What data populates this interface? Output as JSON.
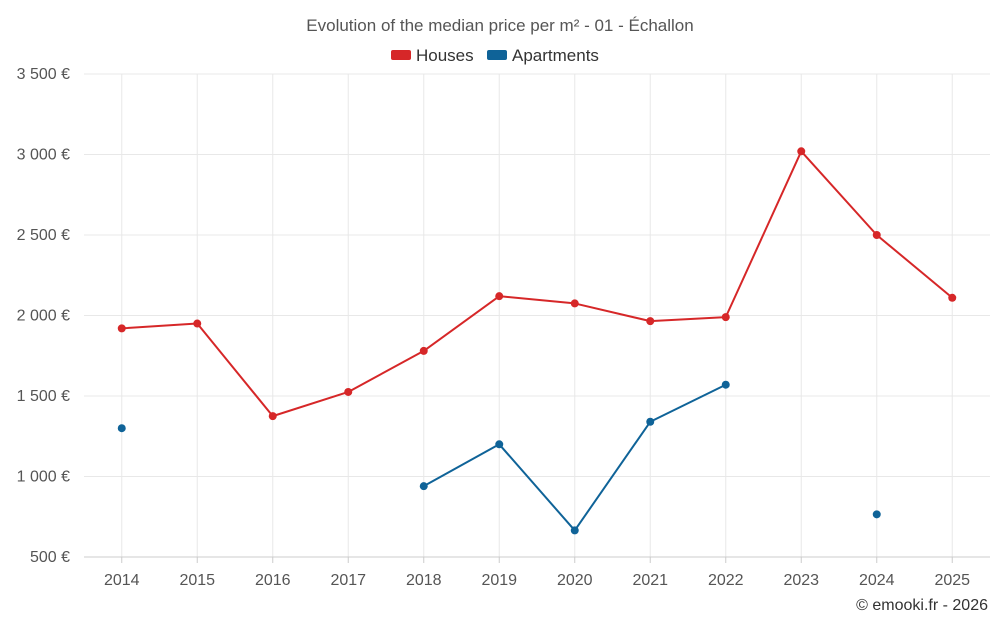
{
  "chart_data": {
    "type": "line",
    "title": "Evolution of the median price per m² - 01 - Échallon",
    "xlabel": "",
    "ylabel": "",
    "ylim": [
      500,
      3500
    ],
    "yticks": [
      500,
      1000,
      1500,
      2000,
      2500,
      3000,
      3500
    ],
    "ytick_labels": [
      "500 €",
      "1 000 €",
      "1 500 €",
      "2 000 €",
      "2 500 €",
      "3 000 €",
      "3 500 €"
    ],
    "categories": [
      "2014",
      "2015",
      "2016",
      "2017",
      "2018",
      "2019",
      "2020",
      "2021",
      "2022",
      "2023",
      "2024",
      "2025"
    ],
    "legend_position": "top-center",
    "grid": true,
    "series": [
      {
        "name": "Houses",
        "color": "#d62728",
        "values": [
          1920,
          1950,
          1375,
          1525,
          1780,
          2120,
          2075,
          1965,
          1990,
          3020,
          2500,
          2110
        ]
      },
      {
        "name": "Apartments",
        "color": "#0f6398",
        "values": [
          1300,
          null,
          null,
          null,
          940,
          1200,
          665,
          1340,
          1570,
          null,
          765,
          null
        ]
      }
    ]
  },
  "footer": {
    "credit": "© emooki.fr - 2026"
  }
}
